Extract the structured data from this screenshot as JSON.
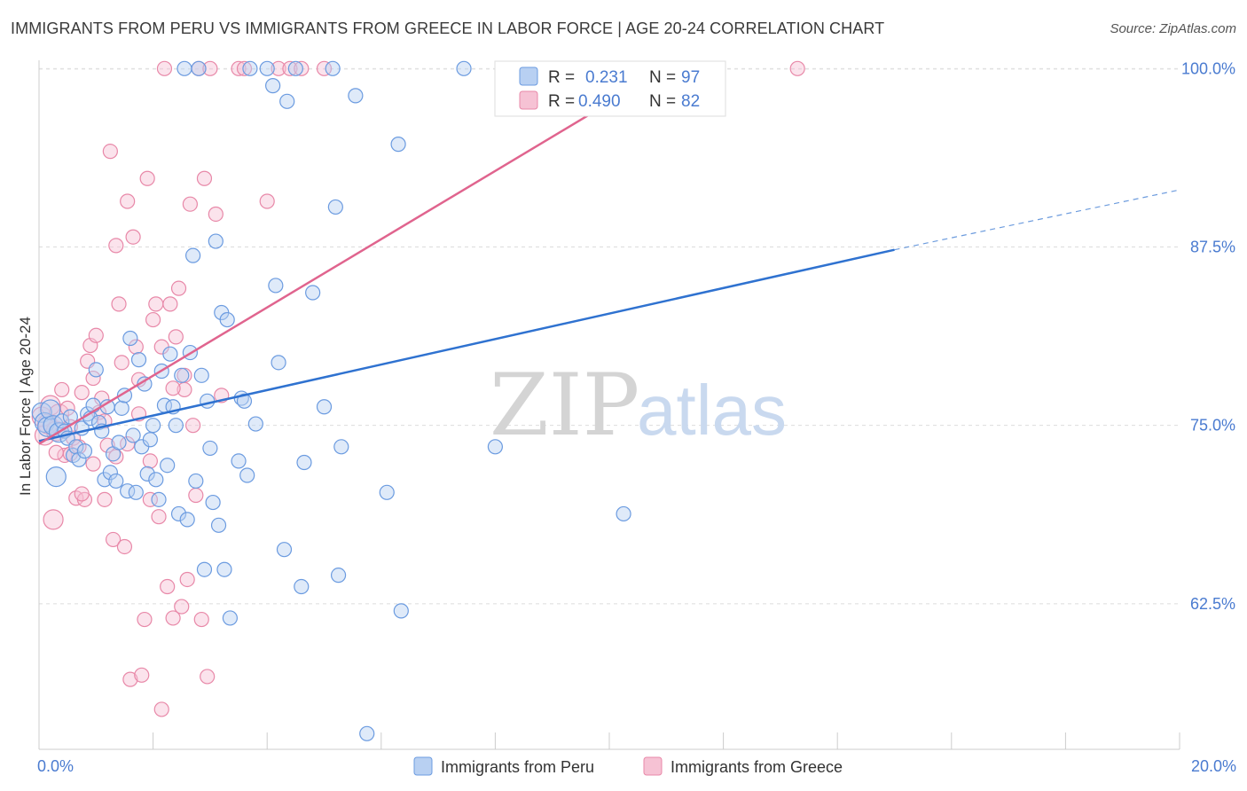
{
  "title": "IMMIGRANTS FROM PERU VS IMMIGRANTS FROM GREECE IN LABOR FORCE | AGE 20-24 CORRELATION CHART",
  "source": "Source: ZipAtlas.com",
  "watermark": {
    "zip": "ZIP",
    "atlas": "atlas"
  },
  "colors": {
    "peru": "#6b9be0",
    "peru_fill": "#b8d0f2",
    "greece": "#e888a8",
    "greece_fill": "#f6c2d4",
    "peru_line": "#2f72d0",
    "greece_line": "#e0648e"
  },
  "legend": {
    "r_label": "R =",
    "n_label": "N =",
    "peru_r": "0.231",
    "peru_n": "97",
    "greece_r": "0.490",
    "greece_n": "82"
  },
  "chart_data": {
    "type": "scatter",
    "xlabel": "",
    "ylabel": "In Labor Force | Age 20-24",
    "xlim": [
      0,
      20
    ],
    "ylim": [
      52.3,
      101.2
    ],
    "x_tick_labels": [
      "0.0%",
      "20.0%"
    ],
    "y_ticks": [
      62.5,
      75.0,
      87.5,
      100.0
    ],
    "y_tick_labels": [
      "62.5%",
      "75.0%",
      "87.5%",
      "100.0%"
    ],
    "grid": true,
    "series": [
      {
        "name": "Immigrants from Peru",
        "trend": {
          "x0": 0,
          "y0": 73.9,
          "x1": 15.0,
          "y1": 87.3,
          "dashed_to_x": 20.0,
          "dashed_to_y": 91.5
        },
        "points": [
          [
            0.05,
            75.9
          ],
          [
            0.1,
            75.2
          ],
          [
            0.15,
            74.9
          ],
          [
            0.2,
            76.1
          ],
          [
            0.25,
            75.0
          ],
          [
            0.3,
            71.4
          ],
          [
            0.35,
            74.5
          ],
          [
            0.4,
            75.3
          ],
          [
            0.45,
            74.6
          ],
          [
            0.5,
            74.1
          ],
          [
            0.55,
            75.6
          ],
          [
            0.6,
            72.9
          ],
          [
            0.65,
            73.5
          ],
          [
            0.7,
            72.6
          ],
          [
            0.75,
            74.8
          ],
          [
            0.8,
            73.2
          ],
          [
            0.85,
            75.8
          ],
          [
            0.9,
            75.5
          ],
          [
            0.95,
            76.4
          ],
          [
            1.0,
            78.9
          ],
          [
            1.05,
            75.2
          ],
          [
            1.1,
            74.6
          ],
          [
            1.15,
            71.2
          ],
          [
            1.2,
            76.3
          ],
          [
            1.25,
            71.7
          ],
          [
            1.3,
            73.0
          ],
          [
            1.35,
            71.1
          ],
          [
            1.4,
            73.8
          ],
          [
            1.45,
            76.2
          ],
          [
            1.5,
            77.1
          ],
          [
            1.55,
            70.4
          ],
          [
            1.6,
            81.1
          ],
          [
            1.65,
            74.3
          ],
          [
            1.7,
            70.3
          ],
          [
            1.75,
            79.6
          ],
          [
            1.8,
            73.5
          ],
          [
            1.85,
            77.9
          ],
          [
            1.9,
            71.6
          ],
          [
            1.95,
            74.0
          ],
          [
            2.0,
            75.0
          ],
          [
            2.05,
            71.2
          ],
          [
            2.1,
            69.8
          ],
          [
            2.15,
            78.8
          ],
          [
            2.2,
            76.4
          ],
          [
            2.25,
            72.2
          ],
          [
            2.3,
            80.0
          ],
          [
            2.35,
            76.3
          ],
          [
            2.4,
            75.0
          ],
          [
            2.45,
            68.8
          ],
          [
            2.5,
            78.5
          ],
          [
            2.55,
            100.0
          ],
          [
            2.6,
            68.4
          ],
          [
            2.65,
            80.1
          ],
          [
            2.7,
            86.9
          ],
          [
            2.75,
            71.1
          ],
          [
            2.8,
            100.0
          ],
          [
            2.85,
            78.5
          ],
          [
            2.9,
            64.9
          ],
          [
            2.95,
            76.7
          ],
          [
            3.0,
            73.4
          ],
          [
            3.05,
            69.6
          ],
          [
            3.1,
            87.9
          ],
          [
            3.15,
            68.0
          ],
          [
            3.2,
            82.9
          ],
          [
            3.25,
            64.9
          ],
          [
            3.3,
            82.4
          ],
          [
            3.35,
            61.5
          ],
          [
            3.5,
            72.5
          ],
          [
            3.55,
            76.9
          ],
          [
            3.6,
            76.7
          ],
          [
            3.65,
            71.5
          ],
          [
            3.7,
            100.0
          ],
          [
            3.8,
            75.1
          ],
          [
            4.0,
            100.0
          ],
          [
            4.1,
            98.8
          ],
          [
            4.15,
            84.8
          ],
          [
            4.2,
            79.4
          ],
          [
            4.3,
            66.3
          ],
          [
            4.35,
            97.7
          ],
          [
            4.5,
            100.0
          ],
          [
            4.6,
            63.7
          ],
          [
            4.65,
            72.4
          ],
          [
            4.8,
            84.3
          ],
          [
            5.0,
            76.3
          ],
          [
            5.15,
            100.0
          ],
          [
            5.2,
            90.3
          ],
          [
            5.25,
            64.5
          ],
          [
            5.3,
            73.5
          ],
          [
            5.55,
            98.1
          ],
          [
            5.75,
            53.4
          ],
          [
            6.1,
            70.3
          ],
          [
            6.3,
            94.7
          ],
          [
            6.35,
            62.0
          ],
          [
            7.45,
            100.0
          ],
          [
            8.0,
            73.5
          ],
          [
            10.25,
            68.8
          ]
        ]
      },
      {
        "name": "Immigrants from Greece",
        "trend": {
          "x0": 0,
          "y0": 73.7,
          "x1": 11.0,
          "y1": 100.0
        },
        "points": [
          [
            0.05,
            75.6
          ],
          [
            0.1,
            74.3
          ],
          [
            0.15,
            75.1
          ],
          [
            0.2,
            76.4
          ],
          [
            0.25,
            68.4
          ],
          [
            0.3,
            74.6
          ],
          [
            0.35,
            75.8
          ],
          [
            0.4,
            77.5
          ],
          [
            0.45,
            72.9
          ],
          [
            0.5,
            76.2
          ],
          [
            0.55,
            73.0
          ],
          [
            0.6,
            74.1
          ],
          [
            0.65,
            69.9
          ],
          [
            0.7,
            73.5
          ],
          [
            0.75,
            77.3
          ],
          [
            0.8,
            69.8
          ],
          [
            0.85,
            79.5
          ],
          [
            0.9,
            80.6
          ],
          [
            0.95,
            72.3
          ],
          [
            1.0,
            81.3
          ],
          [
            1.05,
            75.9
          ],
          [
            1.1,
            76.9
          ],
          [
            1.15,
            69.8
          ],
          [
            1.2,
            73.6
          ],
          [
            1.25,
            94.2
          ],
          [
            1.3,
            67.0
          ],
          [
            1.35,
            87.6
          ],
          [
            1.4,
            83.5
          ],
          [
            1.45,
            79.4
          ],
          [
            1.5,
            66.5
          ],
          [
            1.55,
            90.7
          ],
          [
            1.6,
            57.2
          ],
          [
            1.65,
            88.2
          ],
          [
            1.7,
            80.5
          ],
          [
            1.75,
            75.8
          ],
          [
            1.8,
            57.5
          ],
          [
            1.85,
            61.4
          ],
          [
            1.9,
            92.3
          ],
          [
            1.95,
            69.8
          ],
          [
            2.0,
            82.4
          ],
          [
            2.05,
            83.5
          ],
          [
            2.1,
            68.6
          ],
          [
            2.15,
            55.1
          ],
          [
            2.2,
            100.0
          ],
          [
            2.25,
            63.7
          ],
          [
            2.3,
            83.5
          ],
          [
            2.35,
            61.5
          ],
          [
            2.4,
            81.2
          ],
          [
            2.45,
            84.6
          ],
          [
            2.5,
            62.3
          ],
          [
            2.55,
            77.5
          ],
          [
            2.6,
            64.2
          ],
          [
            2.65,
            90.5
          ],
          [
            2.7,
            75.0
          ],
          [
            2.75,
            70.1
          ],
          [
            2.8,
            100.0
          ],
          [
            2.85,
            61.4
          ],
          [
            2.9,
            92.3
          ],
          [
            2.95,
            57.4
          ],
          [
            3.0,
            100.0
          ],
          [
            3.1,
            89.8
          ],
          [
            3.2,
            77.1
          ],
          [
            3.5,
            100.0
          ],
          [
            3.6,
            100.0
          ],
          [
            4.0,
            90.7
          ],
          [
            4.2,
            100.0
          ],
          [
            4.4,
            100.0
          ],
          [
            4.6,
            100.0
          ],
          [
            5.0,
            100.0
          ],
          [
            13.3,
            100.0
          ],
          [
            0.3,
            73.1
          ],
          [
            0.55,
            74.9
          ],
          [
            0.75,
            70.2
          ],
          [
            0.95,
            78.3
          ],
          [
            1.15,
            75.3
          ],
          [
            1.35,
            72.8
          ],
          [
            1.55,
            73.7
          ],
          [
            1.75,
            78.2
          ],
          [
            1.95,
            72.5
          ],
          [
            2.15,
            80.5
          ],
          [
            2.35,
            77.6
          ],
          [
            2.55,
            78.5
          ]
        ]
      }
    ]
  },
  "bottom_legend": {
    "peru": "Immigrants from Peru",
    "greece": "Immigrants from Greece"
  }
}
